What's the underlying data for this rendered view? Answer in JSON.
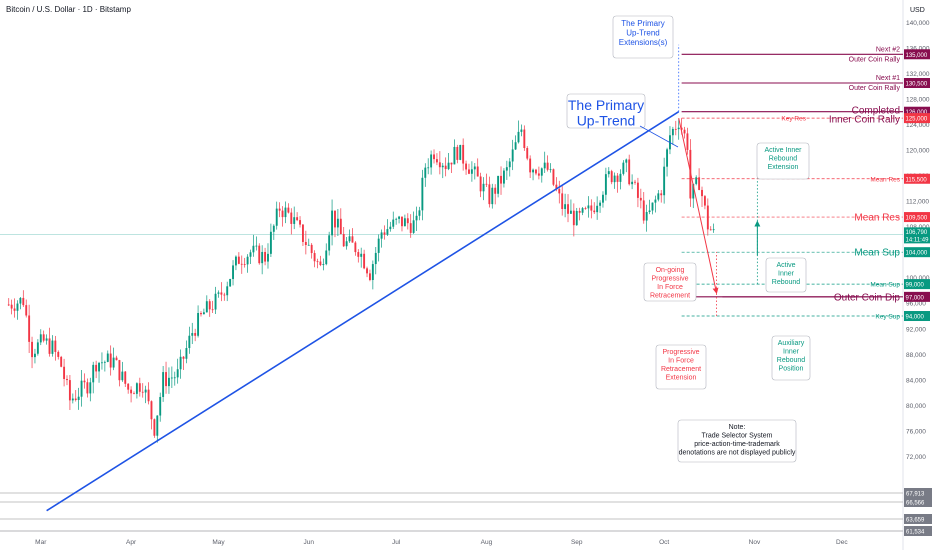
{
  "header": {
    "symbol": "Bitcoin / U.S. Dollar · 1D · Bitstamp",
    "currency": "USD"
  },
  "chart_data": {
    "type": "candlestick",
    "y_axis": {
      "ticks": [
        "140,000",
        "136,000",
        "132,000",
        "128,000",
        "124,000",
        "120,000",
        "116,000",
        "112,000",
        "108,000",
        "104,000",
        "100,000",
        "96,000",
        "92,000",
        "88,000",
        "84,000",
        "80,000",
        "76,000",
        "72,000"
      ],
      "ylim": [
        68000,
        143500
      ]
    },
    "x_axis": {
      "ticks": [
        "Mar",
        "Apr",
        "May",
        "Jun",
        "Jul",
        "Aug",
        "Sep",
        "Oct",
        "Nov",
        "Dec"
      ]
    },
    "close_path": [
      [
        "2025-02-18",
        95800
      ],
      [
        "2025-02-23",
        96500
      ],
      [
        "2025-02-26",
        88700
      ],
      [
        "2025-03-02",
        90000
      ],
      [
        "2025-03-05",
        89000
      ],
      [
        "2025-03-08",
        86200
      ],
      [
        "2025-03-11",
        80800
      ],
      [
        "2025-03-17",
        83300
      ],
      [
        "2025-03-20",
        86800
      ],
      [
        "2025-03-26",
        87000
      ],
      [
        "2025-03-31",
        82500
      ],
      [
        "2025-04-05",
        83500
      ],
      [
        "2025-04-09",
        76500
      ],
      [
        "2025-04-12",
        84000
      ],
      [
        "2025-04-17",
        84800
      ],
      [
        "2025-04-22",
        91500
      ],
      [
        "2025-04-26",
        94500
      ],
      [
        "2025-05-01",
        96700
      ],
      [
        "2025-05-08",
        103000
      ],
      [
        "2025-05-12",
        104000
      ],
      [
        "2025-05-17",
        103200
      ],
      [
        "2025-05-22",
        111000
      ],
      [
        "2025-05-26",
        109500
      ],
      [
        "2025-06-01",
        104800
      ],
      [
        "2025-06-05",
        101500
      ],
      [
        "2025-06-09",
        110000
      ],
      [
        "2025-06-13",
        105500
      ],
      [
        "2025-06-18",
        104600
      ],
      [
        "2025-06-22",
        100800
      ],
      [
        "2025-06-26",
        107200
      ],
      [
        "2025-07-02",
        108800
      ],
      [
        "2025-07-08",
        108300
      ],
      [
        "2025-07-11",
        117500
      ],
      [
        "2025-07-14",
        119800
      ],
      [
        "2025-07-18",
        117800
      ],
      [
        "2025-07-22",
        119900
      ],
      [
        "2025-07-26",
        117500
      ],
      [
        "2025-08-02",
        112500
      ],
      [
        "2025-08-08",
        116700
      ],
      [
        "2025-08-13",
        123300
      ],
      [
        "2025-08-16",
        117500
      ],
      [
        "2025-08-22",
        116900
      ],
      [
        "2025-08-27",
        111200
      ],
      [
        "2025-09-01",
        109000
      ],
      [
        "2025-09-06",
        110600
      ],
      [
        "2025-09-12",
        115900
      ],
      [
        "2025-09-18",
        117100
      ],
      [
        "2025-09-25",
        109000
      ],
      [
        "2025-09-30",
        114000
      ],
      [
        "2025-10-03",
        122300
      ],
      [
        "2025-10-06",
        124700
      ],
      [
        "2025-10-09",
        121000
      ],
      [
        "2025-10-10",
        112500
      ],
      [
        "2025-10-13",
        115200
      ],
      [
        "2025-10-16",
        108200
      ],
      [
        "2025-10-18",
        106790
      ]
    ],
    "last_price": "106,790",
    "countdown": "14:11:49",
    "levels": [
      {
        "name": "Next #2",
        "label": "Outer Coin Rally",
        "value": 135000,
        "price_label": "135,000",
        "style": "solid",
        "color": "#880e4f"
      },
      {
        "name": "Next #1",
        "label": "Outer Coin Rally",
        "value": 130500,
        "price_label": "130,500",
        "style": "solid",
        "color": "#880e4f"
      },
      {
        "name": "Completed",
        "label": "Inner Coin Rally",
        "value": 126000,
        "price_label": "126,000",
        "style": "solid",
        "color": "#880e4f"
      },
      {
        "name": "Key Res",
        "label": "",
        "value": 125000,
        "price_label": "125,000",
        "style": "dashed",
        "color": "#f23645"
      },
      {
        "name": "Mean Res",
        "label": "",
        "value": 115500,
        "price_label": "115,500",
        "style": "dashed",
        "color": "#f23645"
      },
      {
        "name": "Mean Res",
        "label": "",
        "value": 109500,
        "price_label": "109,500",
        "style": "dashed",
        "color": "#f23645"
      },
      {
        "name": "Mean Sup",
        "label": "",
        "value": 104000,
        "price_label": "104,000",
        "style": "dashed",
        "color": "#089981"
      },
      {
        "name": "Mean Sup",
        "label": "",
        "value": 99000,
        "price_label": "99,000",
        "style": "dashed",
        "color": "#089981"
      },
      {
        "name": "Outer Coin Dip",
        "label": "",
        "value": 97000,
        "price_label": "97,000",
        "style": "solid",
        "color": "#880e4f"
      },
      {
        "name": "Key Sup",
        "label": "",
        "value": 94000,
        "price_label": "94,000",
        "style": "dashed",
        "color": "#089981"
      }
    ],
    "bottom_labels": [
      "67,913",
      "66,566",
      "63,659",
      "61,534"
    ],
    "annotations": {
      "primary_uptrend": "The Primary Up-Trend",
      "extension": "The Primary Up-Trend Extensions(s)",
      "active_inner_ext": "Active Inner Rebound Extension",
      "ongoing_retracement": "On-going Progressive In Force Retracement",
      "active_inner": "Active Inner Rebound",
      "retracement_ext": "Progressive In Force Retracement Extension",
      "auxiliary": "Auxiliary Inner Rebound Position",
      "note_title": "Note:",
      "note_body": "Trade Selector System price-action-time-trademark denotations are not displayed publicly"
    },
    "colors": {
      "up": "#089981",
      "down": "#f23645",
      "trend": "#1e53e5",
      "level": "#880e4f",
      "res": "#f23645",
      "sup": "#089981",
      "axis_text": "#131722"
    }
  }
}
